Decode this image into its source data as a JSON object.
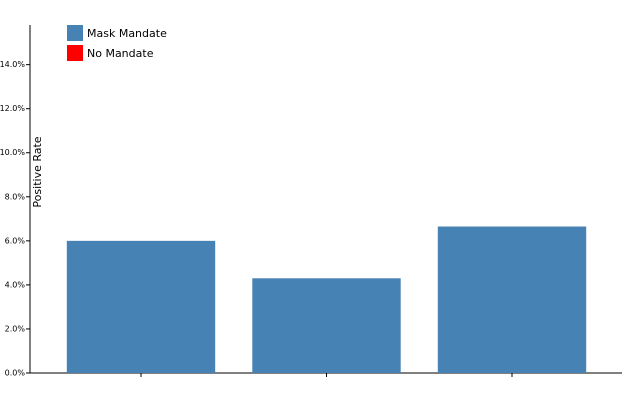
{
  "chart_data": {
    "type": "bar",
    "y_label": "Positive Rate",
    "categories": [
      null,
      null,
      null
    ],
    "series": [
      {
        "name": "Mask Mandate",
        "color": "#4682b4",
        "values": [
          6.0,
          4.3,
          6.65
        ]
      },
      {
        "name": "No Mandate",
        "color": "#ff0000",
        "values": [
          null,
          null,
          null
        ]
      }
    ],
    "ylim": [
      0,
      15.8
    ],
    "yticks": [
      {
        "value": 0,
        "label": "0.0%"
      },
      {
        "value": 2,
        "label": "2.0%"
      },
      {
        "value": 4,
        "label": "4.0%"
      },
      {
        "value": 6,
        "label": "6.0%"
      },
      {
        "value": 8,
        "label": "8.0%"
      },
      {
        "value": 10,
        "label": "10.0%"
      },
      {
        "value": 12,
        "label": "12.0%"
      },
      {
        "value": 14,
        "label": "14.0%"
      }
    ],
    "legend": "upper-left"
  }
}
